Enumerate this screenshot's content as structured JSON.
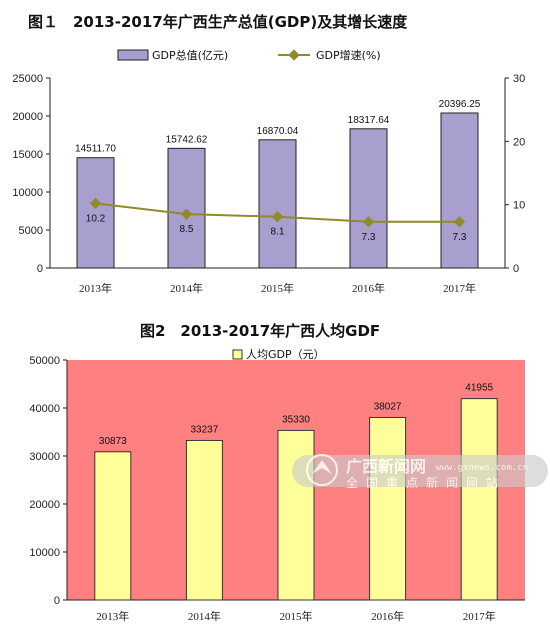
{
  "chart_data": [
    {
      "type": "bar+line",
      "title": "图１　2013-2017年广西生产总值(GDP)及其增长速度",
      "categories": [
        "2013年",
        "2014年",
        "2015年",
        "2016年",
        "2017年"
      ],
      "series": [
        {
          "name": "GDP总值(亿元)",
          "type": "bar",
          "axis": "left",
          "values": [
            14511.7,
            15742.62,
            16870.04,
            18317.64,
            20396.25
          ],
          "labels": [
            "14511.70",
            "15742.62",
            "16870.04",
            "18317.64",
            "20396.25"
          ]
        },
        {
          "name": "GDP增速(%)",
          "type": "line",
          "axis": "right",
          "values": [
            10.2,
            8.5,
            8.1,
            7.3,
            7.3
          ],
          "labels": [
            "10.2",
            "8.5",
            "8.1",
            "7.3",
            "7.3"
          ]
        }
      ],
      "left_axis": {
        "min": 0,
        "max": 25000,
        "ticks": [
          "0",
          "5000",
          "10000",
          "15000",
          "20000",
          "25000"
        ]
      },
      "right_axis": {
        "min": 0,
        "max": 30,
        "ticks": [
          "0",
          "10",
          "20",
          "30"
        ]
      },
      "legend_position": "top",
      "grid": false,
      "colors": {
        "bar": "#a99fcf",
        "bar_stroke": "#222222",
        "line": "#8f8a2a",
        "marker": "#8f8a2a"
      }
    },
    {
      "type": "bar",
      "title": "图2　2013-2017年广西人均GDF",
      "categories": [
        "2013年",
        "2014年",
        "2015年",
        "2016年",
        "2017年"
      ],
      "series": [
        {
          "name": "人均GDP（元）",
          "values": [
            30873,
            33237,
            35330,
            38027,
            41955
          ],
          "labels": [
            "30873",
            "33237",
            "35330",
            "38027",
            "41955"
          ]
        }
      ],
      "y_axis": {
        "min": 0,
        "max": 50000,
        "ticks": [
          "0",
          "10000",
          "20000",
          "30000",
          "40000",
          "50000"
        ]
      },
      "legend_position": "top",
      "grid": false,
      "colors": {
        "plot_background": "#ff8080",
        "bar": "#ffff99",
        "bar_stroke": "#333333"
      }
    }
  ],
  "watermark": {
    "text": "广西新闻网",
    "url": "www.gxnews.com.cn",
    "subtitle": "全国重点新闻网站"
  }
}
